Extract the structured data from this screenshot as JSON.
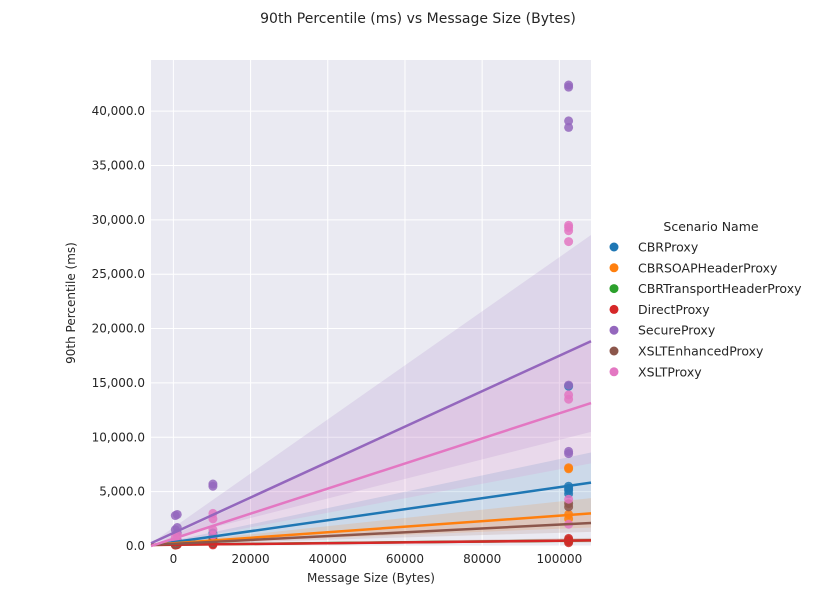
{
  "chart_data": {
    "type": "scatter",
    "title": "90th Percentile (ms) vs Message Size (Bytes)",
    "xlabel": "Message Size (Bytes)",
    "ylabel": "90th Percentile (ms)",
    "xlim": [
      -5800,
      108200
    ],
    "ylim": [
      0,
      44700
    ],
    "x_ticks": [
      0,
      20000,
      40000,
      60000,
      80000,
      100000
    ],
    "x_tick_labels": [
      "0",
      "20000",
      "40000",
      "60000",
      "80000",
      "100000"
    ],
    "y_ticks": [
      0,
      5000,
      10000,
      15000,
      20000,
      25000,
      30000,
      35000,
      40000
    ],
    "y_tick_labels": [
      "0.0",
      "5,000.0",
      "10,000.0",
      "15,000.0",
      "20,000.0",
      "25,000.0",
      "30,000.0",
      "35,000.0",
      "40,000.0"
    ],
    "grid": true,
    "legend": {
      "title": "Scenario Name",
      "placement": "right"
    },
    "series": [
      {
        "name": "CBRProxy",
        "color": "#1f77b4",
        "x": [
          500,
          500,
          1000,
          1000,
          10240,
          10240,
          10240,
          102400,
          102400,
          102400,
          102400,
          102400
        ],
        "y": [
          200,
          400,
          300,
          500,
          700,
          900,
          1200,
          4800,
          5100,
          5300,
          5500,
          14700
        ],
        "fit": {
          "intercept": 350,
          "slope": 0.0506,
          "band_low_end": 3100,
          "band_high_end": 8600
        }
      },
      {
        "name": "CBRSOAPHeaderProxy",
        "color": "#ff7f0e",
        "x": [
          500,
          1000,
          1000,
          10240,
          10240,
          102400,
          102400,
          102400,
          102400
        ],
        "y": [
          150,
          250,
          350,
          400,
          600,
          2500,
          2900,
          7100,
          7200
        ],
        "fit": {
          "intercept": 250,
          "slope": 0.0254,
          "band_low_end": 1700,
          "band_high_end": 4400
        }
      },
      {
        "name": "CBRTransportHeaderProxy",
        "color": "#2ca02c",
        "x": [
          500,
          1000,
          10240,
          102400,
          102400
        ],
        "y": [
          100,
          150,
          200,
          400,
          600
        ],
        "fit": {
          "intercept": 120,
          "slope": 0.0037,
          "band_low_end": 350,
          "band_high_end": 700
        }
      },
      {
        "name": "DirectProxy",
        "color": "#d62728",
        "x": [
          500,
          1000,
          10240,
          10240,
          102400,
          102400,
          102400
        ],
        "y": [
          80,
          120,
          100,
          200,
          300,
          500,
          700
        ],
        "fit": {
          "intercept": 110,
          "slope": 0.0038,
          "band_low_end": 350,
          "band_high_end": 750
        }
      },
      {
        "name": "SecureProxy",
        "color": "#9467bd",
        "x": [
          500,
          500,
          1000,
          1000,
          1000,
          10240,
          10240,
          102400,
          102400,
          102400,
          102400,
          102400,
          102400,
          102400
        ],
        "y": [
          1500,
          2800,
          1700,
          2900,
          1200,
          5500,
          5700,
          8500,
          8700,
          14800,
          38500,
          39100,
          42200,
          42400
        ],
        "fit": {
          "intercept": 1200,
          "slope": 0.163,
          "band_low_end": 10500,
          "band_high_end": 28600
        }
      },
      {
        "name": "XSLTEnhancedProxy",
        "color": "#8c564b",
        "x": [
          500,
          1000,
          10240,
          10240,
          102400,
          102400
        ],
        "y": [
          150,
          250,
          300,
          500,
          3600,
          3900
        ],
        "fit": {
          "intercept": 200,
          "slope": 0.0177,
          "band_low_end": 1300,
          "band_high_end": 3100
        }
      },
      {
        "name": "XSLTProxy",
        "color": "#e377c2",
        "x": [
          500,
          500,
          1000,
          1000,
          10240,
          10240,
          10240,
          10240,
          102400,
          102400,
          102400,
          102400,
          102400,
          102400,
          102400,
          102400
        ],
        "y": [
          400,
          800,
          600,
          1000,
          1000,
          1500,
          2500,
          3000,
          2000,
          4300,
          13500,
          13900,
          28000,
          29000,
          29300,
          29500
        ],
        "fit": {
          "intercept": 600,
          "slope": 0.116,
          "band_low_end": 7600,
          "band_high_end": 19000
        }
      }
    ]
  }
}
